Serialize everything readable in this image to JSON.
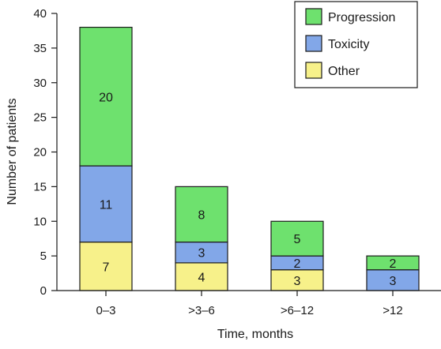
{
  "chart_data": {
    "type": "bar",
    "stacked": true,
    "categories": [
      "0–3",
      ">3–6",
      ">6–12",
      ">12"
    ],
    "series": [
      {
        "name": "Other",
        "values": [
          7,
          4,
          3,
          0
        ],
        "color": "#f7f18a"
      },
      {
        "name": "Toxicity",
        "values": [
          11,
          3,
          2,
          3
        ],
        "color": "#82a7e8"
      },
      {
        "name": "Progression",
        "values": [
          20,
          8,
          5,
          2
        ],
        "color": "#6ee16e"
      }
    ],
    "bar_labels": [
      {
        "Other": "7",
        "Toxicity": "11",
        "Progression": "20"
      },
      {
        "Other": "4",
        "Toxicity": "3",
        "Progression": "8"
      },
      {
        "Other": "3",
        "Toxicity": "2",
        "Progression": "5"
      },
      {
        "Other": "",
        "Toxicity": "3",
        "Progression": "2"
      }
    ],
    "xlabel": "Time, months",
    "ylabel": "Number of patients",
    "ylim": [
      0,
      40
    ],
    "yticks": [
      "0",
      "5",
      "10",
      "15",
      "20",
      "25",
      "30",
      "35",
      "40"
    ],
    "legend_order": [
      "Progression",
      "Toxicity",
      "Other"
    ],
    "legend_position": "top-right",
    "grid": false
  }
}
